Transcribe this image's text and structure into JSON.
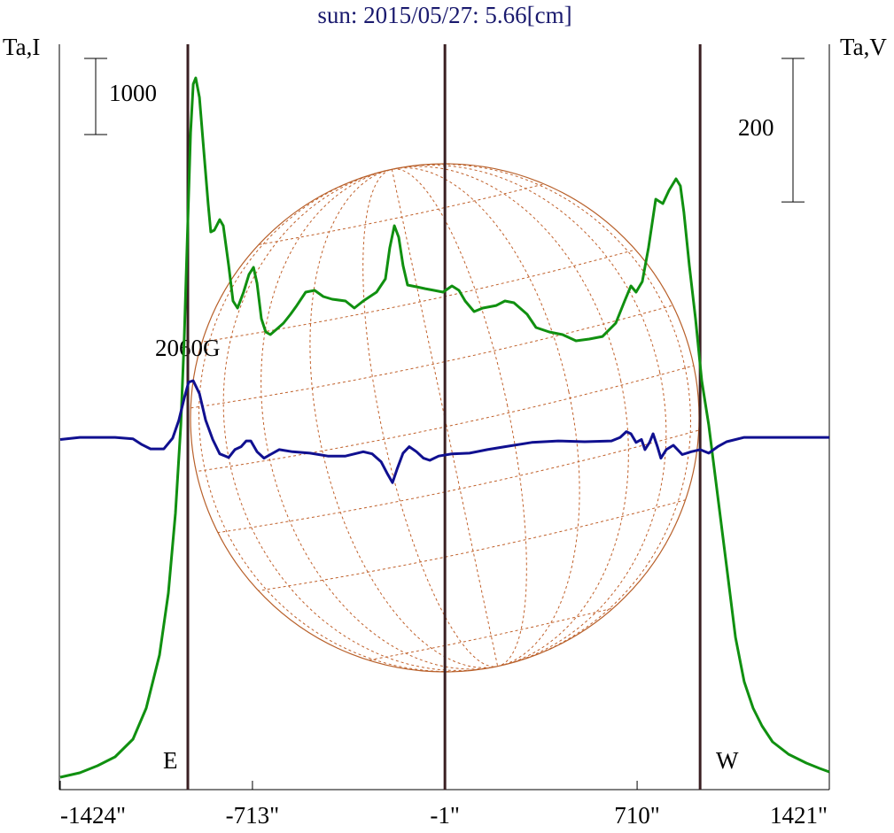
{
  "chart_data": {
    "type": "line",
    "title": "sun: 2015/05/27: 5.66[cm]",
    "ylabel": "Ta,I",
    "y2label": "Ta,V",
    "xlim": [
      -1424,
      1421
    ],
    "xticks": [
      {
        "value": -1424,
        "label": "-1424\""
      },
      {
        "value": -713,
        "label": "-713\""
      },
      {
        "value": -1,
        "label": "-1\""
      },
      {
        "value": 710,
        "label": "710\""
      },
      {
        "value": 1421,
        "label": "1421\""
      }
    ],
    "ylim": [
      0,
      9791
    ],
    "y2lim": [
      -490,
      549
    ],
    "y_scale_bar": 1000,
    "y2_scale_bar": 200,
    "vlines": [
      -952,
      -1,
      943
    ],
    "annotations": [
      {
        "text": "E"
      },
      {
        "text": "W"
      },
      {
        "text": "2060G"
      }
    ],
    "series": [
      {
        "color": "#109010",
        "x": [
          -1424,
          -1352,
          -1286,
          -1221,
          -1155,
          -1106,
          -1057,
          -1024,
          -998,
          -978,
          -965,
          -952,
          -942,
          -932,
          -923,
          -909,
          -893,
          -877,
          -867,
          -854,
          -834,
          -821,
          -801,
          -785,
          -768,
          -746,
          -726,
          -709,
          -696,
          -680,
          -664,
          -647,
          -624,
          -598,
          -572,
          -549,
          -516,
          -483,
          -451,
          -418,
          -369,
          -336,
          -303,
          -254,
          -221,
          -205,
          -188,
          -172,
          -156,
          -139,
          -106,
          -74,
          -41,
          -8,
          25,
          51,
          74,
          107,
          139,
          189,
          221,
          254,
          303,
          336,
          385,
          434,
          484,
          533,
          582,
          631,
          664,
          687,
          706,
          729,
          752,
          779,
          805,
          828,
          854,
          870,
          883,
          903,
          926,
          949,
          975,
          1008,
          1041,
          1074,
          1106,
          1139,
          1172,
          1211,
          1270,
          1336,
          1385,
          1421
        ],
        "values": [
          163,
          221,
          314,
          430,
          663,
          1070,
          1767,
          2581,
          3628,
          4791,
          5953,
          7465,
          8628,
          9267,
          9349,
          9093,
          8395,
          7698,
          7326,
          7349,
          7488,
          7407,
          6884,
          6419,
          6326,
          6535,
          6767,
          6861,
          6651,
          6186,
          6012,
          5977,
          6047,
          6128,
          6244,
          6360,
          6535,
          6558,
          6477,
          6442,
          6419,
          6326,
          6419,
          6535,
          6709,
          7116,
          7407,
          7256,
          6884,
          6628,
          6605,
          6581,
          6558,
          6535,
          6616,
          6558,
          6419,
          6279,
          6326,
          6360,
          6419,
          6395,
          6244,
          6070,
          6012,
          5977,
          5895,
          5919,
          5953,
          6128,
          6419,
          6616,
          6535,
          6674,
          7116,
          7756,
          7698,
          7872,
          8023,
          7930,
          7581,
          6884,
          6186,
          5372,
          4791,
          3861,
          2930,
          2000,
          1419,
          1070,
          837,
          628,
          465,
          349,
          279,
          233
        ]
      },
      {
        "color": "#101090",
        "axis": "y2",
        "x": [
          -1424,
          -1352,
          -1286,
          -1221,
          -1155,
          -1122,
          -1090,
          -1041,
          -1008,
          -985,
          -965,
          -949,
          -932,
          -909,
          -886,
          -860,
          -834,
          -801,
          -778,
          -755,
          -736,
          -719,
          -696,
          -670,
          -647,
          -614,
          -565,
          -500,
          -434,
          -369,
          -303,
          -270,
          -237,
          -215,
          -195,
          -178,
          -156,
          -133,
          -106,
          -80,
          -57,
          -24,
          25,
          90,
          156,
          221,
          320,
          418,
          516,
          615,
          647,
          670,
          687,
          706,
          726,
          739,
          756,
          769,
          785,
          798,
          818,
          844,
          877,
          910,
          943,
          975,
          1008,
          1041,
          1106,
          1205,
          1303,
          1421
        ],
        "values": [
          -2,
          1,
          1,
          1,
          -1,
          -9,
          -15,
          -15,
          0,
          25,
          56,
          78,
          80,
          62,
          25,
          -2,
          -22,
          -27,
          -16,
          -12,
          -4,
          -4,
          -19,
          -28,
          -23,
          -16,
          -19,
          -21,
          -25,
          -25,
          -19,
          -22,
          -33,
          -49,
          -62,
          -43,
          -21,
          -12,
          -19,
          -28,
          -31,
          -25,
          -22,
          -21,
          -16,
          -12,
          -6,
          -4,
          -5,
          -4,
          1,
          9,
          6,
          -6,
          -2,
          -16,
          -6,
          6,
          -12,
          -28,
          -16,
          -10,
          -23,
          -19,
          -16,
          -21,
          -12,
          -5,
          1,
          1,
          1,
          1
        ]
      }
    ]
  }
}
